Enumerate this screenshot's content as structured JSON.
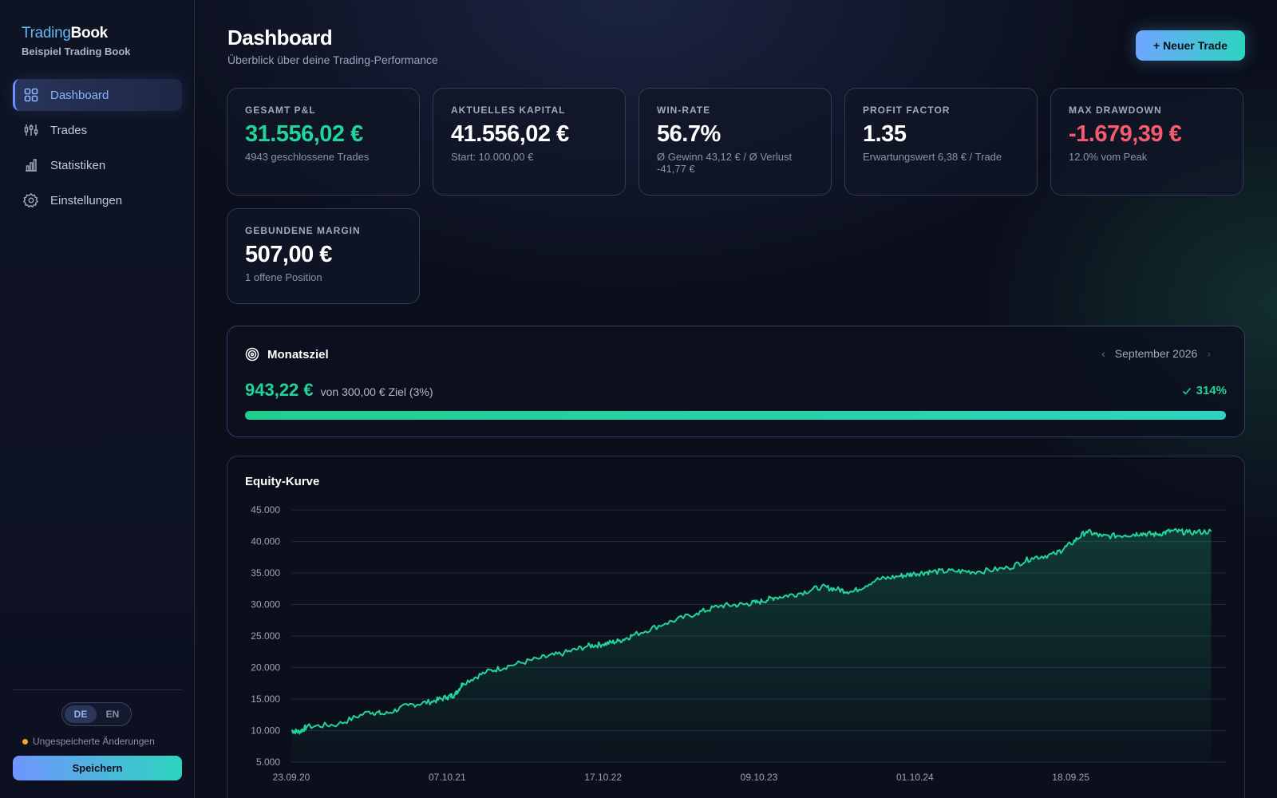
{
  "brand": {
    "part1": "Trading",
    "part2": "Book",
    "subtitle": "Beispiel Trading Book"
  },
  "nav": [
    {
      "label": "Dashboard",
      "icon": "grid-icon",
      "active": true
    },
    {
      "label": "Trades",
      "icon": "sliders-icon"
    },
    {
      "label": "Statistiken",
      "icon": "bar-chart-icon"
    },
    {
      "label": "Einstellungen",
      "icon": "gear-icon"
    }
  ],
  "language": {
    "options": [
      "DE",
      "EN"
    ],
    "selected": "DE"
  },
  "unsaved_text": "Ungespeicherte Änderungen",
  "save_label": "Speichern",
  "page": {
    "title": "Dashboard",
    "subtitle": "Überblick über deine Trading-Performance"
  },
  "new_trade_label": "+ Neuer Trade",
  "stats": [
    {
      "label": "GESAMT P&L",
      "value": "31.556,02 €",
      "sub": "4943 geschlossene Trades",
      "tone": "pos"
    },
    {
      "label": "AKTUELLES KAPITAL",
      "value": "41.556,02 €",
      "sub": "Start: 10.000,00 €",
      "tone": "neutral"
    },
    {
      "label": "WIN-RATE",
      "value": "56.7%",
      "sub": "Ø Gewinn 43,12 € / Ø Verlust -41,77 €",
      "tone": "neutral"
    },
    {
      "label": "PROFIT FACTOR",
      "value": "1.35",
      "sub": "Erwartungswert 6,38 € / Trade",
      "tone": "neutral"
    },
    {
      "label": "MAX DRAWDOWN",
      "value": "-1.679,39 €",
      "sub": "12.0% vom Peak",
      "tone": "neg"
    },
    {
      "label": "GEBUNDENE MARGIN",
      "value": "507,00 €",
      "sub": "1 offene Position",
      "tone": "neutral"
    }
  ],
  "goal": {
    "title": "Monatsziel",
    "month": "September 2026",
    "achieved": "943,22 €",
    "target_text": "von 300,00 € Ziel (3%)",
    "percent_label": "314%",
    "progress_fraction": 1.0
  },
  "colors": {
    "accent_green": "#22d39a",
    "accent_blue": "#6f95ff",
    "negative": "#f65a6e"
  },
  "chart_data": {
    "type": "area",
    "title": "Equity-Kurve",
    "x_ticks": [
      "23.09.20",
      "07.10.21",
      "17.10.22",
      "09.10.23",
      "01.10.24",
      "18.09.25"
    ],
    "y_ticks": [
      "5.000",
      "10.000",
      "15.000",
      "20.000",
      "25.000",
      "30.000",
      "35.000",
      "40.000",
      "45.000"
    ],
    "ylim": [
      5000,
      45000
    ],
    "x_range": [
      0,
      6
    ],
    "grid": true,
    "series": [
      {
        "x": [
          0,
          0.05,
          0.1,
          0.3,
          0.5,
          0.6,
          0.75,
          0.9,
          1.0,
          1.05,
          1.1,
          1.25,
          1.4,
          1.6,
          1.75,
          1.9,
          2.0,
          2.1,
          2.2,
          2.4,
          2.6,
          2.75,
          2.9,
          3.0,
          3.1,
          3.25,
          3.4,
          3.5,
          3.6,
          3.75,
          3.9,
          4.0,
          4.1,
          4.25,
          4.4,
          4.6,
          4.75,
          4.9,
          5.0,
          5.1,
          5.2,
          5.35,
          5.45,
          5.55,
          5.65,
          5.75,
          5.9
        ],
        "values": [
          10000,
          9800,
          10600,
          11000,
          13000,
          12600,
          14000,
          14600,
          15300,
          15700,
          17500,
          19300,
          20300,
          21500,
          22300,
          23400,
          23700,
          24200,
          25200,
          27000,
          28600,
          29800,
          30000,
          30400,
          31100,
          31700,
          32800,
          32400,
          32000,
          33900,
          34500,
          34900,
          35200,
          35300,
          35200,
          35800,
          37400,
          38000,
          39600,
          41600,
          40800,
          41000,
          41300,
          41100,
          41700,
          41400,
          41600
        ]
      }
    ]
  }
}
